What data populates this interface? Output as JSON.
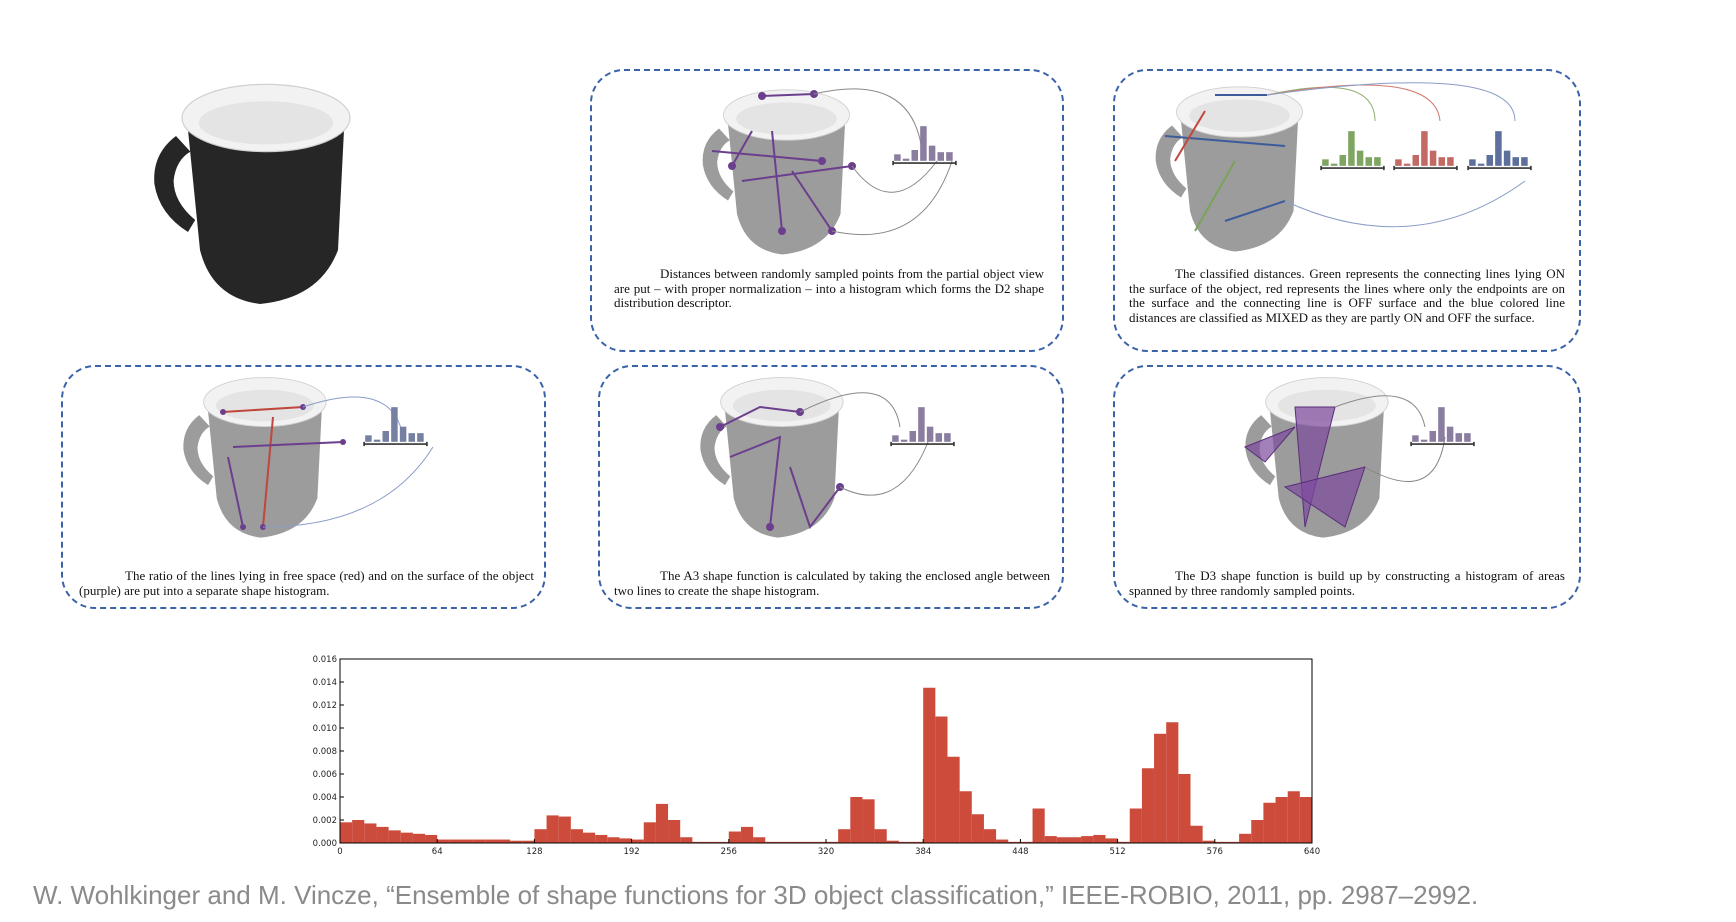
{
  "panels": [
    {
      "caption": "Distances between randomly sampled points from the partial object view are put – with proper normalization – into a histogram which forms the D2 shape distribution descriptor."
    },
    {
      "caption": "The classified distances. Green represents the connecting lines lying ON the surface of the object, red represents the lines where only the endpoints are on the surface and the connecting line is OFF surface and the blue colored line distances are classified as MIXED as they are partly ON and OFF the surface."
    },
    {
      "caption": "The ratio of the lines lying in free space (red) and on the surface of the object (purple) are put into a separate shape histogram."
    },
    {
      "caption": "The A3 shape function is calculated by taking the enclosed angle between two lines to create the shape histogram."
    },
    {
      "caption": "The D3 shape function is build up by constructing a histogram of areas spanned by three randomly sampled points."
    }
  ],
  "citation": "W. Wohlkinger and M. Vincze, “Ensemble of shape functions for 3D object classification,” IEEE-ROBIO, 2011, pp. 2987–2992.",
  "chart_data": {
    "type": "histogram",
    "color": "#cc4b3b",
    "bins": [
      0,
      8,
      16,
      24,
      32,
      40,
      48,
      56,
      64,
      72,
      80,
      88,
      96,
      104,
      112,
      120,
      128,
      136,
      144,
      152,
      160,
      168,
      176,
      184,
      192,
      200,
      208,
      216,
      224,
      232,
      240,
      248,
      256,
      264,
      272,
      280,
      288,
      296,
      304,
      312,
      320,
      328,
      336,
      344,
      352,
      360,
      368,
      376,
      384,
      392,
      400,
      408,
      416,
      424,
      432,
      440,
      448,
      456,
      464,
      472,
      480,
      488,
      496,
      504,
      512,
      520,
      528,
      536,
      544,
      552,
      560,
      568,
      576,
      584,
      592,
      600,
      608,
      616,
      624,
      632,
      640
    ],
    "values": [
      0.0018,
      0.002,
      0.0017,
      0.0014,
      0.0011,
      0.0009,
      0.0008,
      0.0007,
      0.0003,
      0.0003,
      0.0003,
      0.0003,
      0.0003,
      0.0003,
      0.0002,
      0.0002,
      0.0012,
      0.0024,
      0.0023,
      0.0012,
      0.0009,
      0.0007,
      0.0005,
      0.0004,
      0.0003,
      0.0018,
      0.0034,
      0.002,
      0.0005,
      0.0001,
      0.0001,
      0.0001,
      0.001,
      0.0014,
      0.0005,
      0.0001,
      0.0001,
      0.0001,
      0.0001,
      0.0001,
      0.0001,
      0.0012,
      0.004,
      0.0038,
      0.0012,
      0.0002,
      0.0001,
      0.0001,
      0.0135,
      0.011,
      0.0075,
      0.0045,
      0.0025,
      0.0012,
      0.0003,
      0.0001,
      0.0001,
      0.003,
      0.0006,
      0.0005,
      0.0005,
      0.0006,
      0.0007,
      0.0004,
      0.0001,
      0.003,
      0.0065,
      0.0095,
      0.0105,
      0.006,
      0.0015,
      0.0002,
      0.0001,
      0.0001,
      0.0008,
      0.002,
      0.0035,
      0.004,
      0.0045,
      0.004
    ],
    "xlim": [
      0,
      640
    ],
    "xticks": [
      0,
      64,
      128,
      192,
      256,
      320,
      384,
      448,
      512,
      576,
      640
    ],
    "ylim": [
      0,
      0.016
    ],
    "yticks": [
      {
        "value": 0,
        "label": "0.000"
      },
      {
        "value": 0.002,
        "label": "0.002"
      },
      {
        "value": 0.004,
        "label": "0.004"
      },
      {
        "value": 0.006,
        "label": "0.006"
      },
      {
        "value": 0.008,
        "label": "0.008"
      },
      {
        "value": 0.01,
        "label": "0.010"
      },
      {
        "value": 0.012,
        "label": "0.012"
      },
      {
        "value": 0.014,
        "label": "0.014"
      },
      {
        "value": 0.016,
        "label": "0.016"
      }
    ]
  }
}
